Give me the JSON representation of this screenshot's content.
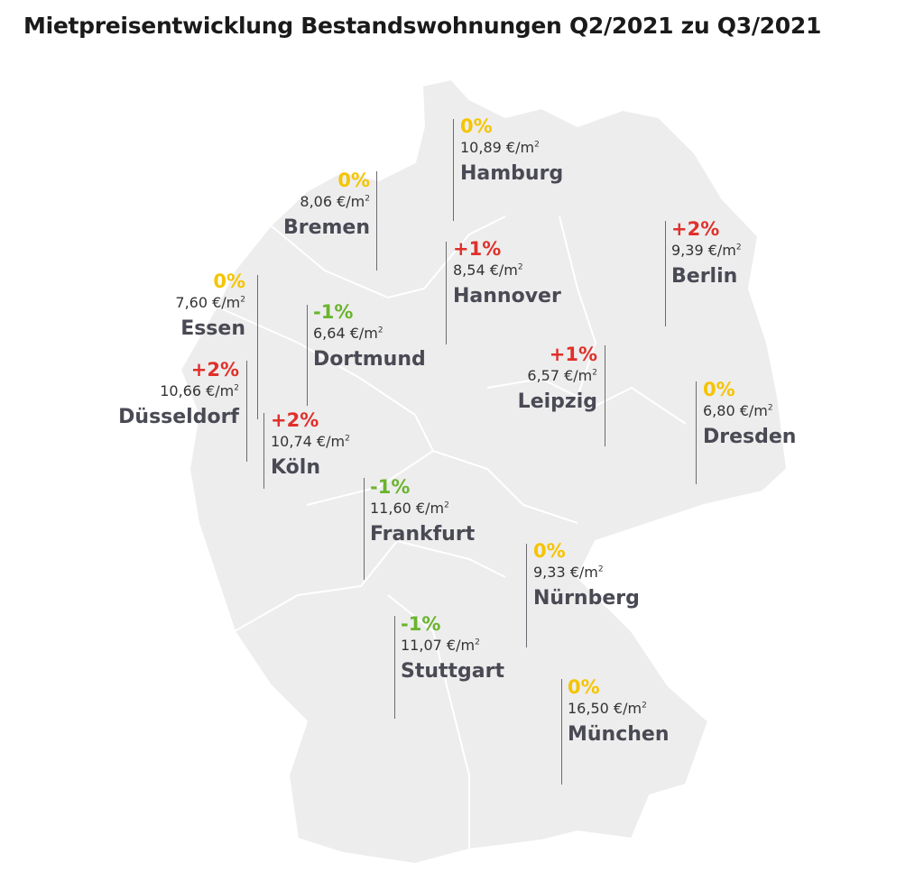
{
  "title": "Mietpreisentwicklung Bestandswohnungen Q2/2021 zu Q3/2021",
  "colors": {
    "increase": "#e0302a",
    "stable": "#f5c400",
    "decrease": "#6ab42d",
    "map": "#ededed"
  },
  "unit": "€/m",
  "unit_sup": "2",
  "cities": [
    {
      "id": "hamburg",
      "name": "Hamburg",
      "change": "0%",
      "price": "10,89",
      "trend": "zero"
    },
    {
      "id": "bremen",
      "name": "Bremen",
      "change": "0%",
      "price": "8,06",
      "trend": "zero"
    },
    {
      "id": "essen",
      "name": "Essen",
      "change": "0%",
      "price": "7,60",
      "trend": "zero"
    },
    {
      "id": "duesseldorf",
      "name": "Düsseldorf",
      "change": "+2%",
      "price": "10,66",
      "trend": "up"
    },
    {
      "id": "dortmund",
      "name": "Dortmund",
      "change": "-1%",
      "price": "6,64",
      "trend": "down"
    },
    {
      "id": "koeln",
      "name": "Köln",
      "change": "+2%",
      "price": "10,74",
      "trend": "up"
    },
    {
      "id": "hannover",
      "name": "Hannover",
      "change": "+1%",
      "price": "8,54",
      "trend": "up"
    },
    {
      "id": "berlin",
      "name": "Berlin",
      "change": "+2%",
      "price": "9,39",
      "trend": "up"
    },
    {
      "id": "leipzig",
      "name": "Leipzig",
      "change": "+1%",
      "price": "6,57",
      "trend": "up"
    },
    {
      "id": "dresden",
      "name": "Dresden",
      "change": "0%",
      "price": "6,80",
      "trend": "zero"
    },
    {
      "id": "frankfurt",
      "name": "Frankfurt",
      "change": "-1%",
      "price": "11,60",
      "trend": "down"
    },
    {
      "id": "nuernberg",
      "name": "Nürnberg",
      "change": "0%",
      "price": "9,33",
      "trend": "zero"
    },
    {
      "id": "stuttgart",
      "name": "Stuttgart",
      "change": "-1%",
      "price": "11,07",
      "trend": "down"
    },
    {
      "id": "muenchen",
      "name": "München",
      "change": "0%",
      "price": "16,50",
      "trend": "zero"
    }
  ]
}
